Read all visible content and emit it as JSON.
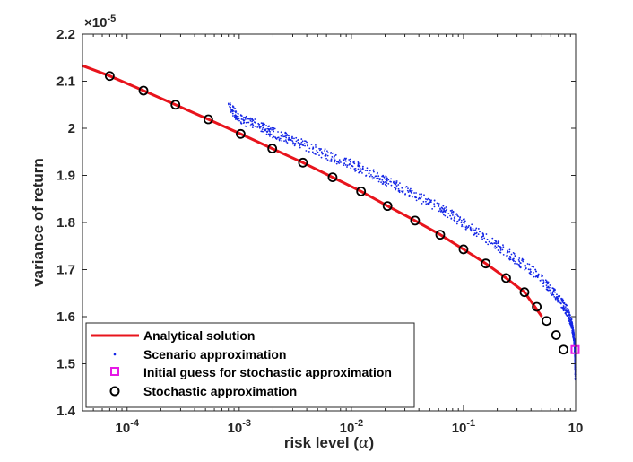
{
  "chart_data": {
    "type": "line",
    "title": "",
    "xlabel_text": "risk level (",
    "xlabel_symbol": "α",
    "xlabel_close": ")",
    "ylabel": "variance of return",
    "xscale": "log",
    "xlim": [
      4e-05,
      1
    ],
    "ylim": [
      1.4,
      2.2
    ],
    "y_exponent_label": "×10",
    "y_exponent_power": "-5",
    "xtick_values": [
      0.0001,
      0.001,
      0.01,
      0.1,
      1
    ],
    "xtick_bases": [
      "10",
      "10",
      "10",
      "10",
      "10"
    ],
    "xtick_exps": [
      "-4",
      "-3",
      "-2",
      "-1",
      ""
    ],
    "xtick_plain": [
      "",
      "",
      "",
      "",
      "10"
    ],
    "ytick_values": [
      1.4,
      1.5,
      1.6,
      1.7,
      1.8,
      1.9,
      2.0,
      2.1,
      2.2
    ],
    "ytick_labels": [
      "1.4",
      "1.5",
      "1.6",
      "1.7",
      "1.8",
      "1.9",
      "2",
      "2.1",
      "2.2"
    ],
    "legend_position": "bottom-left",
    "series": [
      {
        "name": "Analytical solution",
        "kind": "line",
        "color": "#e8141c",
        "x": [
          4e-05,
          7e-05,
          0.00014,
          0.00027,
          0.00053,
          0.00103,
          0.00197,
          0.0037,
          0.0068,
          0.0122,
          0.021,
          0.037,
          0.062,
          0.1,
          0.158,
          0.24,
          0.35,
          0.5
        ],
        "y": [
          2.133,
          2.111,
          2.08,
          2.05,
          2.019,
          1.988,
          1.957,
          1.927,
          1.896,
          1.866,
          1.835,
          1.804,
          1.774,
          1.743,
          1.713,
          1.682,
          1.652,
          1.6
        ]
      },
      {
        "name": "Scenario approximation",
        "kind": "scatter",
        "color": "#1426e6",
        "x": [
          0.0008,
          0.001,
          0.0015,
          0.002,
          0.003,
          0.005,
          0.008,
          0.012,
          0.02,
          0.03,
          0.05,
          0.08,
          0.12,
          0.2,
          0.3,
          0.45,
          0.6,
          0.75,
          0.85,
          0.92,
          0.96,
          0.98,
          0.99,
          0.995
        ],
        "y": [
          2.05,
          2.02,
          2.005,
          1.99,
          1.975,
          1.952,
          1.932,
          1.915,
          1.89,
          1.87,
          1.842,
          1.815,
          1.785,
          1.752,
          1.72,
          1.69,
          1.66,
          1.63,
          1.61,
          1.585,
          1.56,
          1.54,
          1.51,
          1.47
        ]
      },
      {
        "name": "Initial guess for stochastic approximation",
        "kind": "square",
        "color": "#e619e6",
        "x": [
          0.99
        ],
        "y": [
          1.53
        ]
      },
      {
        "name": "Stochastic approximation",
        "kind": "circle",
        "color": "#000000",
        "x": [
          7e-05,
          0.00014,
          0.00027,
          0.00053,
          0.00103,
          0.00197,
          0.0037,
          0.0068,
          0.0122,
          0.021,
          0.037,
          0.062,
          0.1,
          0.158,
          0.24,
          0.35,
          0.45,
          0.55,
          0.67,
          0.78
        ],
        "y": [
          2.111,
          2.08,
          2.05,
          2.019,
          1.988,
          1.957,
          1.927,
          1.896,
          1.866,
          1.835,
          1.804,
          1.774,
          1.743,
          1.713,
          1.682,
          1.652,
          1.621,
          1.591,
          1.561,
          1.53
        ]
      }
    ]
  }
}
